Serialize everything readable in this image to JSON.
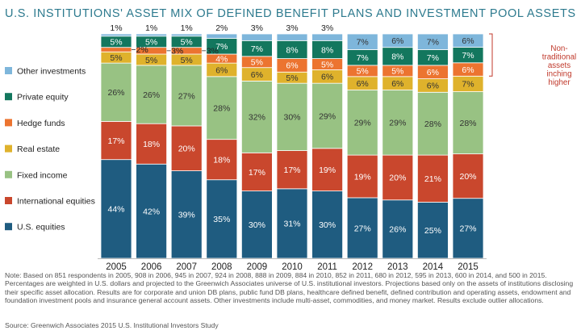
{
  "title": "U.S. INSTITUTIONS' ASSET MIX OF DEFINED BENEFIT PLANS AND INVESTMENT POOL ASSETS",
  "note": "Note: Based on 851 respondents in 2005, 908 in 2006, 945 in 2007, 924 in 2008, 888 in 2009, 884 in 2010, 852 in 2011, 680 in 2012, 595 in 2013, 600 in 2014, and 500 in 2015. Percentages are weighted in U.S. dollars and projected to the Greenwich Associates universe of U.S. institutional investors. Projections based only on the assets of institutions disclosing their specific asset allocation. Results are for corporate and union DB plans, public fund DB plans, healthcare defined benefit, defined contribution and operating assets, endowment and foundation investment pools and insurance general account assets. Other investments include multi-asset, commodities, and money market. Results exclude outlier allocations.",
  "source": "Source: Greenwich Associates 2015 U.S. Institutional Investors Study",
  "annotation": "Non-traditional assets inching higher",
  "colors": {
    "title": "#2d7a8e",
    "annotation": "#c0392b"
  },
  "chart_data": {
    "type": "bar",
    "stacked": true,
    "categories": [
      "2005",
      "2006",
      "2007",
      "2008",
      "2009",
      "2010",
      "2011",
      "2012",
      "2013",
      "2014",
      "2015"
    ],
    "series": [
      {
        "name": "U.S. equities",
        "color": "#1f5c80",
        "values": [
          44,
          42,
          39,
          35,
          30,
          31,
          30,
          27,
          26,
          25,
          27
        ]
      },
      {
        "name": "International equities",
        "color": "#c9472d",
        "values": [
          17,
          18,
          20,
          18,
          17,
          17,
          19,
          19,
          20,
          21,
          20
        ]
      },
      {
        "name": "Fixed income",
        "color": "#98c283",
        "values": [
          26,
          26,
          27,
          28,
          32,
          30,
          29,
          29,
          29,
          28,
          28
        ]
      },
      {
        "name": "Real estate",
        "color": "#dfb22c",
        "values": [
          5,
          5,
          5,
          6,
          6,
          5,
          6,
          6,
          6,
          6,
          7
        ]
      },
      {
        "name": "Hedge funds",
        "color": "#ec7430",
        "values": [
          2,
          3,
          3,
          4,
          5,
          6,
          5,
          5,
          5,
          6,
          6
        ]
      },
      {
        "name": "Private equity",
        "color": "#13775e",
        "values": [
          5,
          5,
          5,
          7,
          7,
          8,
          8,
          7,
          8,
          7,
          7
        ]
      },
      {
        "name": "Other investments",
        "color": "#7eb6db",
        "values": [
          1,
          1,
          1,
          2,
          3,
          3,
          3,
          7,
          6,
          7,
          6
        ]
      }
    ],
    "legend_order": [
      "Other investments",
      "Private equity",
      "Hedge funds",
      "Real estate",
      "Fixed income",
      "International equities",
      "U.S. equities"
    ],
    "value_suffix": "%",
    "legend_position": "left",
    "grid": false,
    "ylim": [
      0,
      100
    ]
  }
}
